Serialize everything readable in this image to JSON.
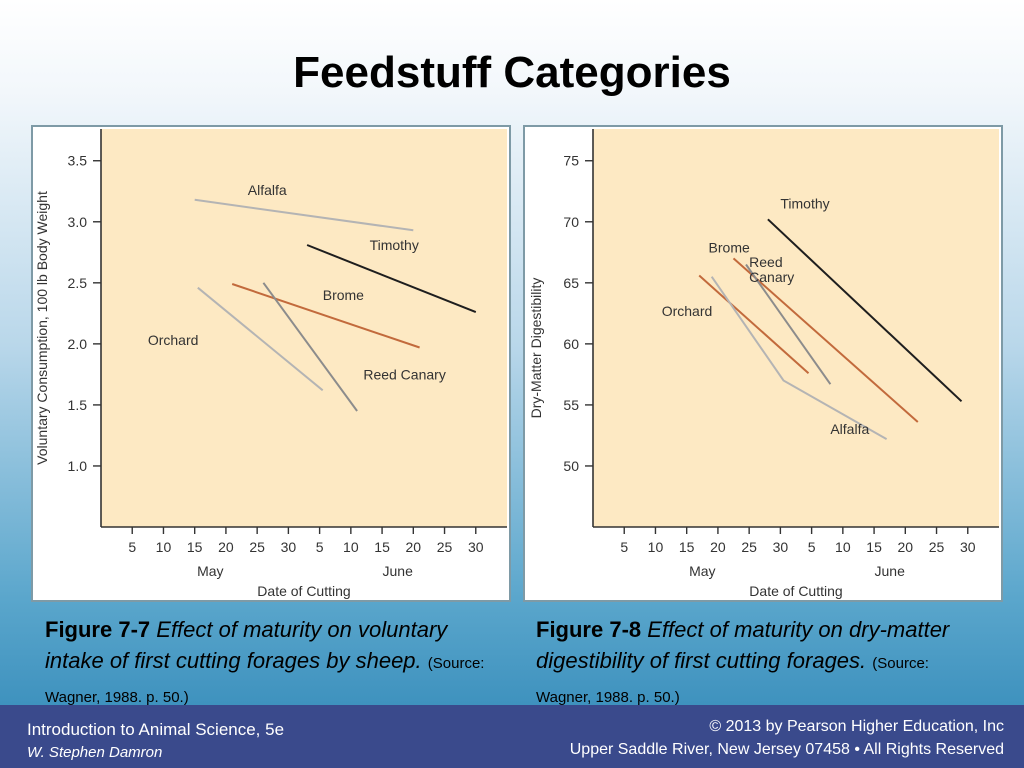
{
  "title": "Feedstuff Categories",
  "captions": [
    {
      "number": "Figure 7-7",
      "text": "Effect of maturity on voluntary intake of first cutting forages by sheep.",
      "source": "(Source: Wagner, 1988. p. 50.)"
    },
    {
      "number": "Figure 7-8",
      "text": "Effect of maturity on dry-matter digestibility of first cutting forages.",
      "source": "(Source: Wagner, 1988. p. 50.)"
    }
  ],
  "footer": {
    "book": "Introduction to Animal Science, 5e",
    "author": "W. Stephen Damron",
    "copyright": "© 2013 by Pearson Higher Education, Inc",
    "publisher": "Upper Saddle River, New Jersey 07458 • All Rights Reserved"
  },
  "colors": {
    "plot_bg": "#fde9c3",
    "axis": "#333333",
    "gray": "#b4b4b4",
    "dark_gray": "#8c8c8c",
    "black": "#1e1e1e",
    "brown": "#c26a3c"
  },
  "chart_data": [
    {
      "type": "line",
      "title": "",
      "xlabel": "Date of Cutting",
      "ylabel": "Voluntary Consumption, 100 lb Body Weight",
      "x_ticks": [
        "5",
        "10",
        "15",
        "20",
        "25",
        "30",
        "5",
        "10",
        "15",
        "20",
        "25",
        "30"
      ],
      "month_labels": [
        "May",
        "June"
      ],
      "y_ticks": [
        1.0,
        1.5,
        2.0,
        2.5,
        3.0,
        3.5
      ],
      "xlim": [
        0,
        13
      ],
      "ylim": [
        0.5,
        3.76
      ],
      "grid": false,
      "series": [
        {
          "name": "Alfalfa",
          "color": "#b4b4b4",
          "points": [
            [
              3,
              3.18
            ],
            [
              10,
              2.93
            ]
          ],
          "label_at": [
            4.7,
            3.22
          ]
        },
        {
          "name": "Timothy",
          "color": "#1e1e1e",
          "points": [
            [
              6.6,
              2.81
            ],
            [
              12,
              2.26
            ]
          ],
          "label_at": [
            8.6,
            2.77
          ]
        },
        {
          "name": "Brome",
          "color": "#c26a3c",
          "points": [
            [
              4.2,
              2.49
            ],
            [
              10.2,
              1.97
            ]
          ],
          "label_at": [
            7.1,
            2.36
          ]
        },
        {
          "name": "Orchard",
          "color": "#b4b4b4",
          "points": [
            [
              3.1,
              2.46
            ],
            [
              7.1,
              1.62
            ]
          ],
          "label_at": [
            1.5,
            1.99
          ]
        },
        {
          "name": "Reed Canary",
          "color": "#8c8c8c",
          "points": [
            [
              5.2,
              2.5
            ],
            [
              8.2,
              1.45
            ]
          ],
          "label_at": [
            8.4,
            1.71
          ]
        }
      ]
    },
    {
      "type": "line",
      "title": "",
      "xlabel": "Date of Cutting",
      "ylabel": "Dry-Matter Digestibility",
      "x_ticks": [
        "5",
        "10",
        "15",
        "20",
        "25",
        "30",
        "5",
        "10",
        "15",
        "20",
        "25",
        "30"
      ],
      "month_labels": [
        "May",
        "June"
      ],
      "y_ticks": [
        50,
        55,
        60,
        65,
        70,
        75
      ],
      "xlim": [
        0,
        13
      ],
      "ylim": [
        45,
        77.6
      ],
      "grid": false,
      "series": [
        {
          "name": "Timothy",
          "color": "#1e1e1e",
          "points": [
            [
              5.6,
              70.2
            ],
            [
              11.8,
              55.3
            ]
          ],
          "label_at": [
            6.0,
            71.1
          ]
        },
        {
          "name": "Brome",
          "color": "#c26a3c",
          "points": [
            [
              4.5,
              67
            ],
            [
              10.4,
              53.6
            ]
          ],
          "label_at": [
            3.7,
            67.5
          ]
        },
        {
          "name": "Reed Canary",
          "color": "#8c8c8c",
          "points": [
            [
              4.9,
              66.5
            ],
            [
              7.6,
              56.7
            ]
          ],
          "label_at": [
            5.0,
            66.3
          ],
          "label_lines": [
            "Reed",
            "Canary"
          ]
        },
        {
          "name": "Orchard",
          "color": "#c26a3c",
          "points": [
            [
              3.4,
              65.6
            ],
            [
              6.9,
              57.6
            ]
          ],
          "label_at": [
            2.2,
            62.3
          ]
        },
        {
          "name": "Alfalfa",
          "color": "#b4b4b4",
          "points": [
            [
              3.8,
              65.5
            ],
            [
              6.1,
              57.0
            ],
            [
              9.4,
              52.2
            ]
          ],
          "label_at": [
            7.6,
            52.6
          ]
        }
      ]
    }
  ]
}
